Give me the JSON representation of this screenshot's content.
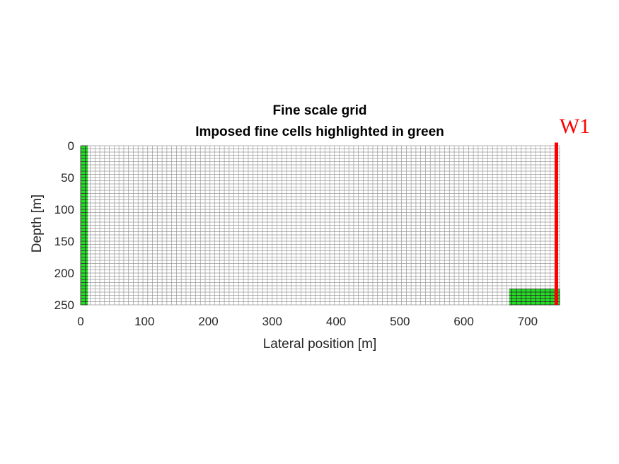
{
  "chart_data": {
    "type": "grid",
    "title": "Fine scale grid",
    "subtitle": "Imposed fine cells highlighted in green",
    "xlabel": "Lateral position [m]",
    "ylabel": "Depth [m]",
    "xlim": [
      0,
      750
    ],
    "ylim": [
      0,
      250
    ],
    "y_reversed": true,
    "xticks": [
      0,
      100,
      200,
      300,
      400,
      500,
      600,
      700
    ],
    "yticks": [
      0,
      50,
      100,
      150,
      200,
      250
    ],
    "grid": {
      "nx": 100,
      "ny": 50,
      "cell_dx": 7.5,
      "cell_dy": 5,
      "line_color": "#999999"
    },
    "highlight_color": "#22e022",
    "highlighted_regions": [
      {
        "x": [
          0,
          11.25
        ],
        "y": [
          0,
          250
        ]
      },
      {
        "x": [
          671.25,
          750
        ],
        "y": [
          225,
          250
        ]
      }
    ],
    "well": {
      "name": "W1",
      "x": 745,
      "y": [
        -5,
        250
      ],
      "color": "#ff0000"
    }
  }
}
